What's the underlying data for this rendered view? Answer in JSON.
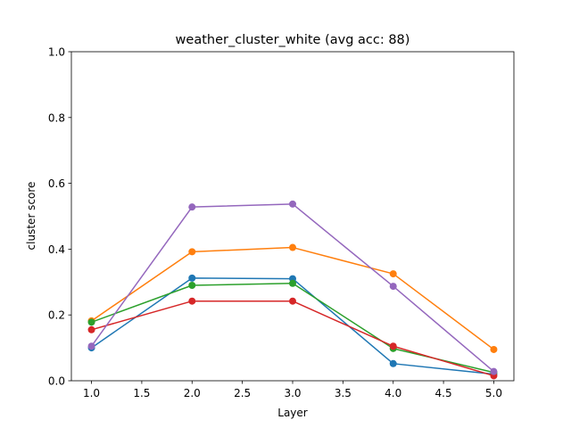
{
  "chart_data": {
    "type": "line",
    "title": "weather_cluster_white (avg acc: 88)",
    "xlabel": "Layer",
    "ylabel": "cluster score",
    "xlim": [
      0.8,
      5.2
    ],
    "ylim": [
      0.0,
      1.0
    ],
    "xticks": [
      "1.0",
      "1.5",
      "2.0",
      "2.5",
      "3.0",
      "3.5",
      "4.0",
      "4.5",
      "5.0"
    ],
    "xtick_values": [
      1.0,
      1.5,
      2.0,
      2.5,
      3.0,
      3.5,
      4.0,
      4.5,
      5.0
    ],
    "yticks": [
      "0.0",
      "0.2",
      "0.4",
      "0.6",
      "0.8",
      "1.0"
    ],
    "ytick_values": [
      0.0,
      0.2,
      0.4,
      0.6,
      0.8,
      1.0
    ],
    "grid": false,
    "x": [
      1,
      2,
      3,
      4,
      5
    ],
    "series": [
      {
        "color": "#1f77b4",
        "values": [
          0.1,
          0.312,
          0.31,
          0.052,
          0.02
        ]
      },
      {
        "color": "#ff7f0e",
        "values": [
          0.182,
          0.392,
          0.405,
          0.325,
          0.095
        ]
      },
      {
        "color": "#2ca02c",
        "values": [
          0.178,
          0.29,
          0.296,
          0.098,
          0.025
        ]
      },
      {
        "color": "#d62728",
        "values": [
          0.155,
          0.242,
          0.242,
          0.105,
          0.015
        ]
      },
      {
        "color": "#9467bd",
        "values": [
          0.105,
          0.528,
          0.537,
          0.287,
          0.028
        ]
      }
    ]
  }
}
